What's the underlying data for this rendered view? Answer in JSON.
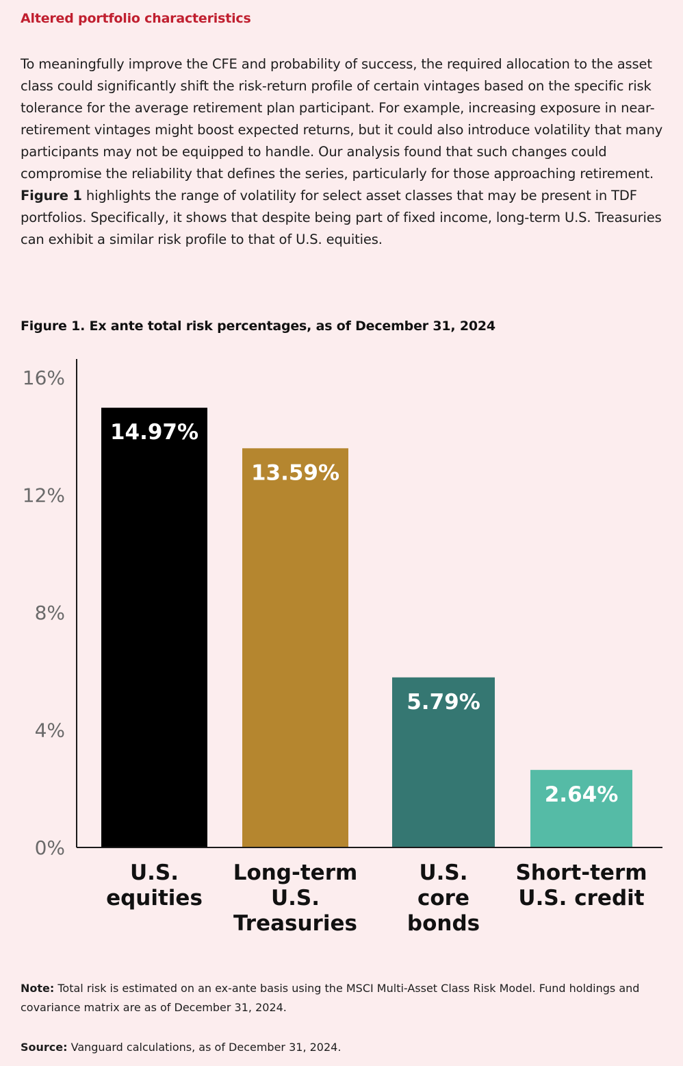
{
  "section_heading": "Altered portfolio characteristics",
  "body": {
    "paragraph_main": "To meaningfully improve the CFE and probability of success, the required allocation to the asset class could significantly shift the risk-return profile of certain vintages based on the specific risk tolerance for the average retirement plan participant. For example, increasing exposure in near-retirement vintages might boost expected returns, but it could also introduce volatility that many participants may not be equipped to handle. Our analysis found that such changes could compromise the reliability that defines the series, particularly for those approaching retirement.",
    "figure_ref": "Figure 1",
    "paragraph_figure": "highlights the range of volatility for select asset classes that may be present in TDF portfolios. Specifically, it shows that despite being part of fixed income, long-term U.S. Treasuries can exhibit a similar risk profile to that of U.S. equities."
  },
  "figure_title": "Figure 1. Ex ante total risk percentages, as of December 31, 2024",
  "chart_data": {
    "type": "bar",
    "title": "Figure 1. Ex ante total risk percentages, as of December 31, 2024",
    "categories": [
      [
        "U.S.",
        "equities"
      ],
      [
        "Long-term",
        "U.S.",
        "Treasuries"
      ],
      [
        "U.S.",
        "core",
        "bonds"
      ],
      [
        "Short-term",
        "U.S. credit"
      ]
    ],
    "values": [
      14.97,
      13.59,
      5.79,
      2.64
    ],
    "value_labels": [
      "14.97%",
      "13.59%",
      "5.79%",
      "2.64%"
    ],
    "colors": [
      "#000000",
      "#b5862f",
      "#357772",
      "#55bba6"
    ],
    "yticks": [
      0,
      4,
      8,
      12,
      16
    ],
    "ytick_labels": [
      "0%",
      "4%",
      "8%",
      "12%",
      "16%"
    ],
    "ylim": [
      0,
      16
    ],
    "xlabel": "",
    "ylabel": "",
    "grid": false,
    "legend": "none"
  },
  "note": {
    "lead": "Note:",
    "text": "Total risk is estimated on an ex-ante basis using the MSCI Multi-Asset Class Risk Model. Fund holdings and covariance matrix are as of December 31, 2024."
  },
  "source": {
    "lead": "Source:",
    "text": "Vanguard calculations, as of December 31, 2024."
  }
}
